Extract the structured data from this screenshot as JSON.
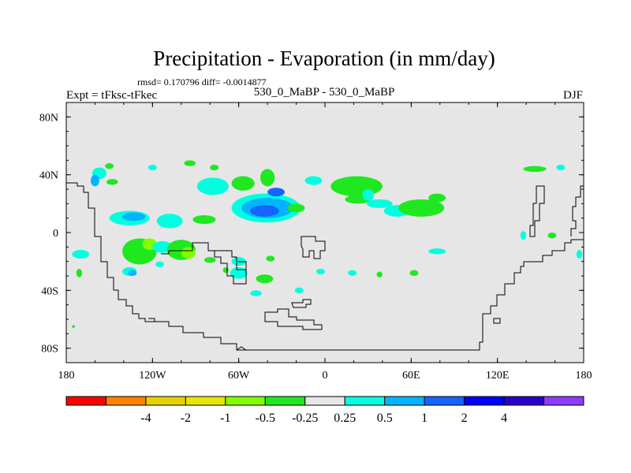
{
  "chart_data": {
    "type": "contour-map",
    "title": "Precipitation - Evaporation (in mm/day)",
    "stats": "rmsd= 0.170796 diff= -0.0014877",
    "left_label": "Expt = tFksc-tFkec",
    "center_label": "530_0_MaBP - 530_0_MaBP",
    "right_label": "DJF",
    "x_ticks": [
      {
        "value": -180,
        "label": "180"
      },
      {
        "value": -120,
        "label": "120W"
      },
      {
        "value": -60,
        "label": "60W"
      },
      {
        "value": 0,
        "label": "0"
      },
      {
        "value": 60,
        "label": "60E"
      },
      {
        "value": 120,
        "label": "120E"
      },
      {
        "value": 180,
        "label": "180"
      }
    ],
    "y_ticks": [
      {
        "value": 80,
        "label": "80N"
      },
      {
        "value": 40,
        "label": "40N"
      },
      {
        "value": 0,
        "label": "0"
      },
      {
        "value": -40,
        "label": "40S"
      },
      {
        "value": -80,
        "label": "80S"
      }
    ],
    "xlim": [
      -180,
      180
    ],
    "ylim": [
      -90,
      90
    ],
    "background_color": "#e6e6e6",
    "colorbar": {
      "colors": [
        "#ff0000",
        "#ff8000",
        "#e6d200",
        "#e6e600",
        "#80ff00",
        "#20e820",
        "#e6e6e6",
        "#00ffe0",
        "#00b4ff",
        "#1464ff",
        "#0000ff",
        "#2800c8",
        "#8c3cff"
      ],
      "labels": [
        "-4",
        "-2",
        "-1",
        "-0.5",
        "-0.25",
        "0.25",
        "0.5",
        "1",
        "2",
        "4"
      ]
    },
    "anomalies": [
      {
        "lon": -157,
        "lat": 41,
        "rx": 5,
        "ry": 4,
        "level": "0.25"
      },
      {
        "lon": -160,
        "lat": 36,
        "rx": 3,
        "ry": 4,
        "level": "0.5"
      },
      {
        "lon": -148,
        "lat": 35,
        "rx": 4,
        "ry": 2,
        "level": "-0.25"
      },
      {
        "lon": -136,
        "lat": 10,
        "rx": 14,
        "ry": 5,
        "level": "0.25"
      },
      {
        "lon": -133,
        "lat": 11,
        "rx": 8,
        "ry": 3,
        "level": "0.5"
      },
      {
        "lon": -108,
        "lat": 8,
        "rx": 9,
        "ry": 5,
        "level": "0.25"
      },
      {
        "lon": -84,
        "lat": 9,
        "rx": 8,
        "ry": 3,
        "level": "-0.25"
      },
      {
        "lon": -120,
        "lat": 45,
        "rx": 3,
        "ry": 2,
        "level": "0.25"
      },
      {
        "lon": -150,
        "lat": 46,
        "rx": 3,
        "ry": 2,
        "level": "-0.25"
      },
      {
        "lon": -94,
        "lat": 48,
        "rx": 4,
        "ry": 2,
        "level": "-0.25"
      },
      {
        "lon": -77,
        "lat": 45,
        "rx": 3,
        "ry": 2,
        "level": "-0.25"
      },
      {
        "lon": -78,
        "lat": 32,
        "rx": 11,
        "ry": 6,
        "level": "0.25"
      },
      {
        "lon": -57,
        "lat": 34,
        "rx": 8,
        "ry": 5,
        "level": "-0.25"
      },
      {
        "lon": -40,
        "lat": 38,
        "rx": 5,
        "ry": 6,
        "level": "-0.25"
      },
      {
        "lon": -41,
        "lat": 17,
        "rx": 24,
        "ry": 10,
        "level": "0.25"
      },
      {
        "lon": -40,
        "lat": 17,
        "rx": 18,
        "ry": 7,
        "level": "0.5"
      },
      {
        "lon": -42,
        "lat": 15,
        "rx": 10,
        "ry": 4,
        "level": "1"
      },
      {
        "lon": -34,
        "lat": 28,
        "rx": 6,
        "ry": 3,
        "level": "1"
      },
      {
        "lon": -20,
        "lat": 17,
        "rx": 6,
        "ry": 3,
        "level": "-0.25"
      },
      {
        "lon": -8,
        "lat": 36,
        "rx": 6,
        "ry": 3,
        "level": "0.25"
      },
      {
        "lon": 22,
        "lat": 32,
        "rx": 18,
        "ry": 7,
        "level": "-0.25"
      },
      {
        "lon": 23,
        "lat": 23,
        "rx": 9,
        "ry": 3,
        "level": "-0.25"
      },
      {
        "lon": 30,
        "lat": 26,
        "rx": 4,
        "ry": 4,
        "level": "0.25"
      },
      {
        "lon": 38,
        "lat": 20,
        "rx": 9,
        "ry": 3,
        "level": "0.25"
      },
      {
        "lon": 50,
        "lat": 15,
        "rx": 9,
        "ry": 4,
        "level": "0.25"
      },
      {
        "lon": 67,
        "lat": 17,
        "rx": 16,
        "ry": 6,
        "level": "-0.25"
      },
      {
        "lon": 78,
        "lat": 24,
        "rx": 6,
        "ry": 3,
        "level": "-0.25"
      },
      {
        "lon": 146,
        "lat": 44,
        "rx": 8,
        "ry": 2,
        "level": "-0.25"
      },
      {
        "lon": 164,
        "lat": 45,
        "rx": 3,
        "ry": 2,
        "level": "0.25"
      },
      {
        "lon": 138,
        "lat": -2,
        "rx": 2,
        "ry": 3,
        "level": "0.25"
      },
      {
        "lon": 158,
        "lat": -2,
        "rx": 3,
        "ry": 2,
        "level": "-0.25"
      },
      {
        "lon": 177,
        "lat": -15,
        "rx": 2,
        "ry": 3,
        "level": "0.25"
      },
      {
        "lon": -170,
        "lat": -15,
        "rx": 6,
        "ry": 3,
        "level": "0.25"
      },
      {
        "lon": -171,
        "lat": -28,
        "rx": 2,
        "ry": 3,
        "level": "-0.25"
      },
      {
        "lon": -129,
        "lat": -13,
        "rx": 12,
        "ry": 9,
        "level": "-0.25"
      },
      {
        "lon": -122,
        "lat": -8,
        "rx": 5,
        "ry": 4,
        "level": "-0.5"
      },
      {
        "lon": -113,
        "lat": -10,
        "rx": 7,
        "ry": 4,
        "level": "0.25"
      },
      {
        "lon": -136,
        "lat": -27,
        "rx": 5,
        "ry": 3,
        "level": "0.25"
      },
      {
        "lon": -134,
        "lat": -28,
        "rx": 3,
        "ry": 2,
        "level": "0.5"
      },
      {
        "lon": -100,
        "lat": -12,
        "rx": 10,
        "ry": 7,
        "level": "-0.25"
      },
      {
        "lon": -95,
        "lat": -14,
        "rx": 5,
        "ry": 4,
        "level": "-0.5"
      },
      {
        "lon": -80,
        "lat": -19,
        "rx": 4,
        "ry": 2,
        "level": "-0.25"
      },
      {
        "lon": -60,
        "lat": -20,
        "rx": 5,
        "ry": 3,
        "level": "0.25"
      },
      {
        "lon": -60,
        "lat": -28,
        "rx": 6,
        "ry": 4,
        "level": "0.25"
      },
      {
        "lon": -69,
        "lat": -26,
        "rx": 2,
        "ry": 2,
        "level": "-0.25"
      },
      {
        "lon": -42,
        "lat": -32,
        "rx": 6,
        "ry": 3,
        "level": "-0.25"
      },
      {
        "lon": -38,
        "lat": -18,
        "rx": 3,
        "ry": 2,
        "level": "-0.25"
      },
      {
        "lon": -48,
        "lat": -42,
        "rx": 4,
        "ry": 2,
        "level": "0.25"
      },
      {
        "lon": -18,
        "lat": -40,
        "rx": 3,
        "ry": 2,
        "level": "0.25"
      },
      {
        "lon": -3,
        "lat": -27,
        "rx": 3,
        "ry": 2,
        "level": "0.25"
      },
      {
        "lon": 19,
        "lat": -28,
        "rx": 3,
        "ry": 2,
        "level": "0.25"
      },
      {
        "lon": 38,
        "lat": -29,
        "rx": 2,
        "ry": 2,
        "level": "-0.25"
      },
      {
        "lon": 62,
        "lat": -28,
        "rx": 3,
        "ry": 2,
        "level": "-0.25"
      },
      {
        "lon": 78,
        "lat": -13,
        "rx": 6,
        "ry": 2,
        "level": "0.25"
      },
      {
        "lon": -175,
        "lat": -65,
        "rx": 1,
        "ry": 1,
        "level": "-0.25"
      },
      {
        "lon": -115,
        "lat": -22,
        "rx": 3,
        "ry": 2,
        "level": "0.25"
      }
    ]
  }
}
